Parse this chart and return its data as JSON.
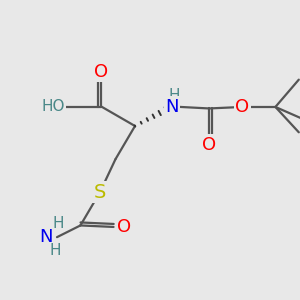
{
  "bg_color": "#e8e8e8",
  "atom_colors": {
    "C": "#4a8888",
    "O": "#ff0000",
    "N": "#0000ee",
    "S": "#bbbb00",
    "H": "#4a8888"
  },
  "font_size": 11,
  "fig_width": 3.0,
  "fig_height": 3.0,
  "dpi": 100
}
